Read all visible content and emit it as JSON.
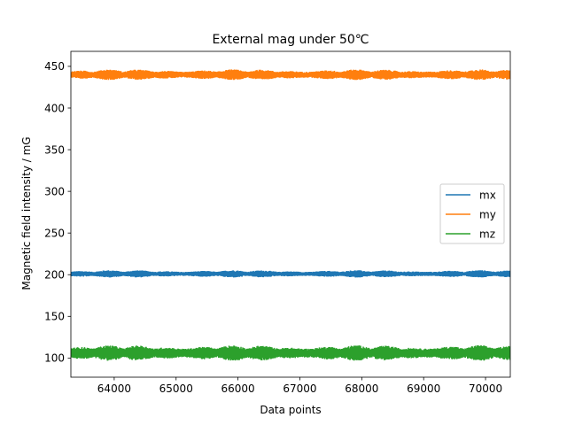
{
  "chart_data": {
    "type": "line",
    "title": "External mag under 50℃",
    "xlabel": "Data points",
    "ylabel": "Magnetic field intensity / mG",
    "xlim": [
      63300,
      70400
    ],
    "ylim": [
      77,
      468
    ],
    "xticks": [
      64000,
      65000,
      66000,
      67000,
      68000,
      69000,
      70000
    ],
    "yticks": [
      100,
      150,
      200,
      250,
      300,
      350,
      400,
      450
    ],
    "grid": false,
    "legend_position": "center-right",
    "series": [
      {
        "name": "mx",
        "color": "#1f77b4",
        "mean": 201,
        "amplitude": 4.5
      },
      {
        "name": "my",
        "color": "#ff7f0e",
        "mean": 440,
        "amplitude": 6.5
      },
      {
        "name": "mz",
        "color": "#2ca02c",
        "mean": 106,
        "amplitude": 9.5
      }
    ]
  }
}
